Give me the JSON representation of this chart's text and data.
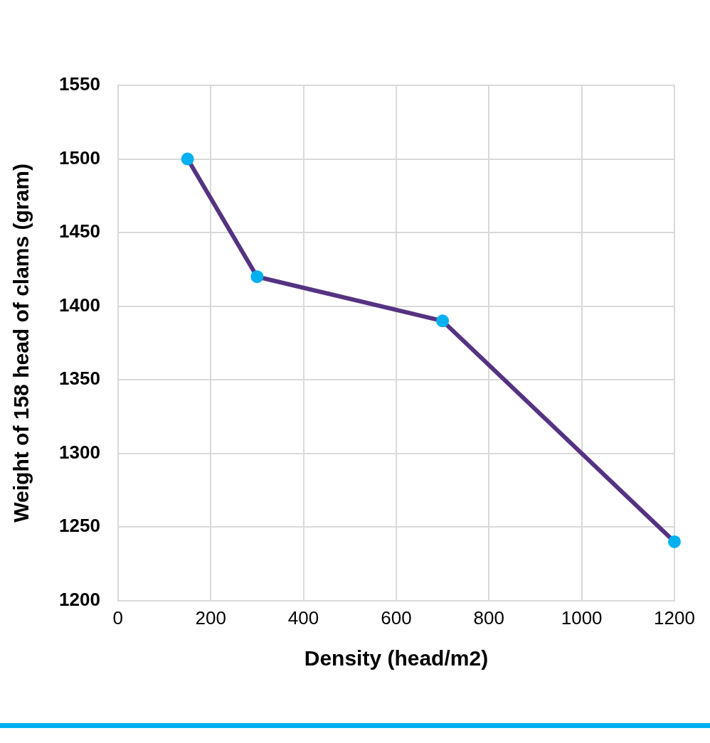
{
  "chart_data": {
    "type": "line",
    "xlabel": "Density (head/m2)",
    "ylabel": "Weight of 158 head of clams (gram)",
    "x": [
      150,
      300,
      700,
      1200
    ],
    "series": [
      {
        "color": "#553382",
        "colors": [
          "#00b0f0",
          "#00b0f0",
          "#00b0f0",
          "#00b0f0"
        ],
        "values": [
          1500,
          1420,
          1390,
          1240
        ]
      }
    ],
    "xlim": [
      0,
      1200
    ],
    "xticks": [
      0,
      200,
      400,
      600,
      800,
      1000,
      1200
    ],
    "ylim": [
      1200,
      1550
    ],
    "yticks": [
      1200,
      1250,
      1300,
      1350,
      1400,
      1450,
      1500,
      1550
    ],
    "grid": true,
    "marker": "circle",
    "legend": false
  }
}
